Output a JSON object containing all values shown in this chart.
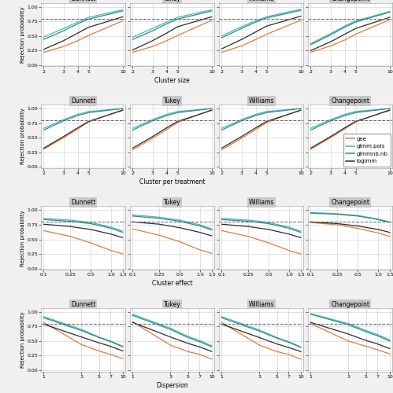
{
  "col_titles": [
    "Dunnett",
    "Tukey",
    "Williams",
    "Changepoint"
  ],
  "row_xlabels": [
    "Cluster size",
    "Cluster per treatment",
    "Cluster effect",
    "Dispersion"
  ],
  "ylabel": "Rejection probability",
  "dashed_line_y": 0.8,
  "legend_labels": [
    "gee",
    "glmm.pois",
    "glmmnb.nb",
    "logimm"
  ],
  "line_colors": [
    "#E07B39",
    "#45B8B0",
    "#2E8B8B",
    "#2B2B2B"
  ],
  "background_color": "#F0F0F0",
  "panel_bg": "#FFFFFF",
  "header_bg": "#C8C8C8",
  "row0_x": [
    2,
    3,
    4,
    5,
    10
  ],
  "row1_x": [
    2,
    3,
    4,
    5,
    10
  ],
  "row2_x": [
    0.1,
    0.25,
    0.5,
    1.0,
    1.5
  ],
  "row3_x": [
    1,
    3,
    5,
    7,
    10
  ],
  "row_xtick_labels": [
    [
      "2",
      "3",
      "4",
      "5",
      "10"
    ],
    [
      "2",
      "3",
      "4",
      "5",
      "10"
    ],
    [
      "0.1",
      "0.25",
      "0.5",
      "1.0",
      "1.5"
    ],
    [
      "1",
      "3",
      "5",
      "7",
      "10"
    ]
  ],
  "yticks": [
    0.0,
    0.25,
    0.5,
    0.75,
    1.0
  ],
  "ylim": [
    -0.02,
    1.07
  ],
  "data": {
    "row0": {
      "Dunnett": {
        "gee": [
          0.22,
          0.32,
          0.42,
          0.51,
          0.76
        ],
        "glmm.pois": [
          0.48,
          0.63,
          0.74,
          0.82,
          0.95
        ],
        "glmmnb.nb": [
          0.44,
          0.59,
          0.71,
          0.79,
          0.93
        ],
        "logimm": [
          0.27,
          0.42,
          0.55,
          0.65,
          0.83
        ]
      },
      "Tukey": {
        "gee": [
          0.22,
          0.32,
          0.42,
          0.51,
          0.77
        ],
        "glmm.pois": [
          0.48,
          0.63,
          0.74,
          0.82,
          0.95
        ],
        "glmmnb.nb": [
          0.44,
          0.59,
          0.71,
          0.79,
          0.93
        ],
        "logimm": [
          0.26,
          0.42,
          0.55,
          0.66,
          0.83
        ]
      },
      "Williams": {
        "gee": [
          0.22,
          0.33,
          0.44,
          0.53,
          0.77
        ],
        "glmm.pois": [
          0.5,
          0.66,
          0.76,
          0.83,
          0.96
        ],
        "glmmnb.nb": [
          0.47,
          0.63,
          0.74,
          0.81,
          0.94
        ],
        "logimm": [
          0.28,
          0.44,
          0.57,
          0.67,
          0.84
        ]
      },
      "Changepoint": {
        "gee": [
          0.22,
          0.33,
          0.43,
          0.53,
          0.78
        ],
        "glmm.pois": [
          0.37,
          0.54,
          0.67,
          0.76,
          0.92
        ],
        "glmmnb.nb": [
          0.35,
          0.52,
          0.65,
          0.74,
          0.91
        ],
        "logimm": [
          0.25,
          0.4,
          0.53,
          0.63,
          0.82
        ]
      }
    },
    "row1": {
      "Dunnett": {
        "gee": [
          0.3,
          0.5,
          0.65,
          0.77,
          0.98
        ],
        "glmm.pois": [
          0.66,
          0.81,
          0.9,
          0.95,
          1.0
        ],
        "glmmnb.nb": [
          0.63,
          0.79,
          0.88,
          0.93,
          1.0
        ],
        "logimm": [
          0.32,
          0.52,
          0.67,
          0.78,
          0.97
        ]
      },
      "Tukey": {
        "gee": [
          0.29,
          0.49,
          0.64,
          0.76,
          0.98
        ],
        "glmm.pois": [
          0.66,
          0.81,
          0.9,
          0.95,
          1.0
        ],
        "glmmnb.nb": [
          0.63,
          0.79,
          0.88,
          0.93,
          1.0
        ],
        "logimm": [
          0.32,
          0.52,
          0.67,
          0.78,
          0.97
        ]
      },
      "Williams": {
        "gee": [
          0.29,
          0.49,
          0.64,
          0.76,
          0.98
        ],
        "glmm.pois": [
          0.66,
          0.81,
          0.9,
          0.95,
          1.0
        ],
        "glmmnb.nb": [
          0.63,
          0.79,
          0.88,
          0.93,
          1.0
        ],
        "logimm": [
          0.32,
          0.52,
          0.67,
          0.78,
          0.97
        ]
      },
      "Changepoint": {
        "gee": [
          0.3,
          0.5,
          0.65,
          0.77,
          0.98
        ],
        "glmm.pois": [
          0.66,
          0.81,
          0.9,
          0.95,
          1.0
        ],
        "glmmnb.nb": [
          0.63,
          0.79,
          0.88,
          0.93,
          1.0
        ],
        "logimm": [
          0.32,
          0.52,
          0.67,
          0.78,
          0.97
        ]
      }
    },
    "row2": {
      "Dunnett": {
        "gee": [
          0.65,
          0.55,
          0.44,
          0.31,
          0.25
        ],
        "glmm.pois": [
          0.86,
          0.83,
          0.79,
          0.71,
          0.64
        ],
        "glmmnb.nb": [
          0.84,
          0.81,
          0.77,
          0.69,
          0.62
        ],
        "logimm": [
          0.76,
          0.72,
          0.67,
          0.59,
          0.53
        ]
      },
      "Tukey": {
        "gee": [
          0.68,
          0.57,
          0.46,
          0.32,
          0.26
        ],
        "glmm.pois": [
          0.92,
          0.88,
          0.83,
          0.75,
          0.68
        ],
        "glmmnb.nb": [
          0.9,
          0.86,
          0.81,
          0.73,
          0.66
        ],
        "logimm": [
          0.8,
          0.76,
          0.7,
          0.62,
          0.56
        ]
      },
      "Williams": {
        "gee": [
          0.65,
          0.55,
          0.44,
          0.31,
          0.25
        ],
        "glmm.pois": [
          0.86,
          0.83,
          0.79,
          0.71,
          0.64
        ],
        "glmmnb.nb": [
          0.84,
          0.81,
          0.77,
          0.69,
          0.62
        ],
        "logimm": [
          0.76,
          0.72,
          0.67,
          0.59,
          0.53
        ]
      },
      "Changepoint": {
        "gee": [
          0.79,
          0.75,
          0.69,
          0.61,
          0.55
        ],
        "glmm.pois": [
          0.96,
          0.94,
          0.91,
          0.85,
          0.8
        ],
        "glmmnb.nb": [
          0.95,
          0.93,
          0.9,
          0.84,
          0.79
        ],
        "logimm": [
          0.8,
          0.77,
          0.73,
          0.67,
          0.62
        ]
      }
    },
    "row3": {
      "Dunnett": {
        "gee": [
          0.82,
          0.44,
          0.33,
          0.27,
          0.2
        ],
        "glmm.pois": [
          0.92,
          0.7,
          0.57,
          0.5,
          0.41
        ],
        "glmmnb.nb": [
          0.9,
          0.68,
          0.56,
          0.49,
          0.4
        ],
        "logimm": [
          0.79,
          0.57,
          0.47,
          0.41,
          0.33
        ]
      },
      "Tukey": {
        "gee": [
          0.83,
          0.43,
          0.32,
          0.27,
          0.19
        ],
        "glmm.pois": [
          0.96,
          0.72,
          0.58,
          0.51,
          0.42
        ],
        "glmmnb.nb": [
          0.94,
          0.7,
          0.56,
          0.49,
          0.4
        ],
        "logimm": [
          0.82,
          0.57,
          0.46,
          0.4,
          0.32
        ]
      },
      "Williams": {
        "gee": [
          0.82,
          0.43,
          0.32,
          0.27,
          0.19
        ],
        "glmm.pois": [
          0.92,
          0.69,
          0.56,
          0.49,
          0.4
        ],
        "glmmnb.nb": [
          0.9,
          0.67,
          0.55,
          0.48,
          0.39
        ],
        "logimm": [
          0.79,
          0.56,
          0.45,
          0.39,
          0.32
        ]
      },
      "Changepoint": {
        "gee": [
          0.8,
          0.5,
          0.41,
          0.35,
          0.28
        ],
        "glmm.pois": [
          0.97,
          0.8,
          0.68,
          0.61,
          0.52
        ],
        "glmmnb.nb": [
          0.96,
          0.78,
          0.66,
          0.59,
          0.5
        ],
        "logimm": [
          0.82,
          0.62,
          0.51,
          0.45,
          0.37
        ]
      }
    }
  }
}
